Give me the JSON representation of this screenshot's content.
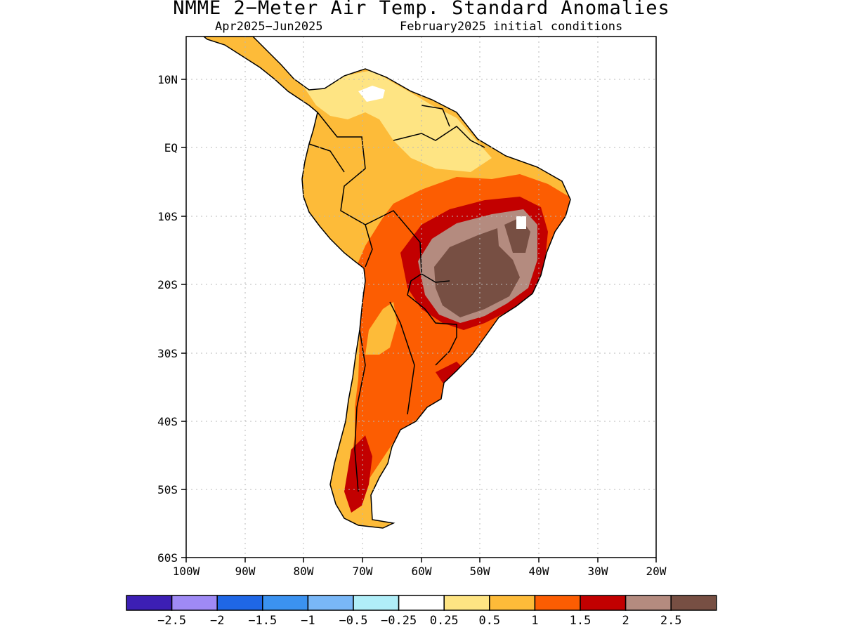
{
  "title": "NMME 2−Meter Air Temp. Standard Anomalies",
  "subtitle_left": "Apr2025−Jun2025",
  "subtitle_right": "February2025 initial conditions",
  "map": {
    "lat_labels": [
      "10N",
      "EQ",
      "10S",
      "20S",
      "30S",
      "40S",
      "50S",
      "60S"
    ],
    "lon_labels": [
      "100W",
      "90W",
      "80W",
      "70W",
      "60W",
      "50W",
      "40W",
      "30W",
      "20W"
    ],
    "gridlines": true
  },
  "legend": {
    "colors": [
      "#3c1fb4",
      "#9f8af5",
      "#1f67e6",
      "#3b92f0",
      "#79b7f7",
      "#b0eef8",
      "#ffffff",
      "#fee483",
      "#fdbb39",
      "#fc5d02",
      "#c20000",
      "#b48b7f",
      "#774f43"
    ],
    "labels": [
      "−2.5",
      "−2",
      "−1.5",
      "−1",
      "−0.5",
      "−0.25",
      "0.25",
      "0.5",
      "1",
      "1.5",
      "2",
      "2.5"
    ]
  }
}
